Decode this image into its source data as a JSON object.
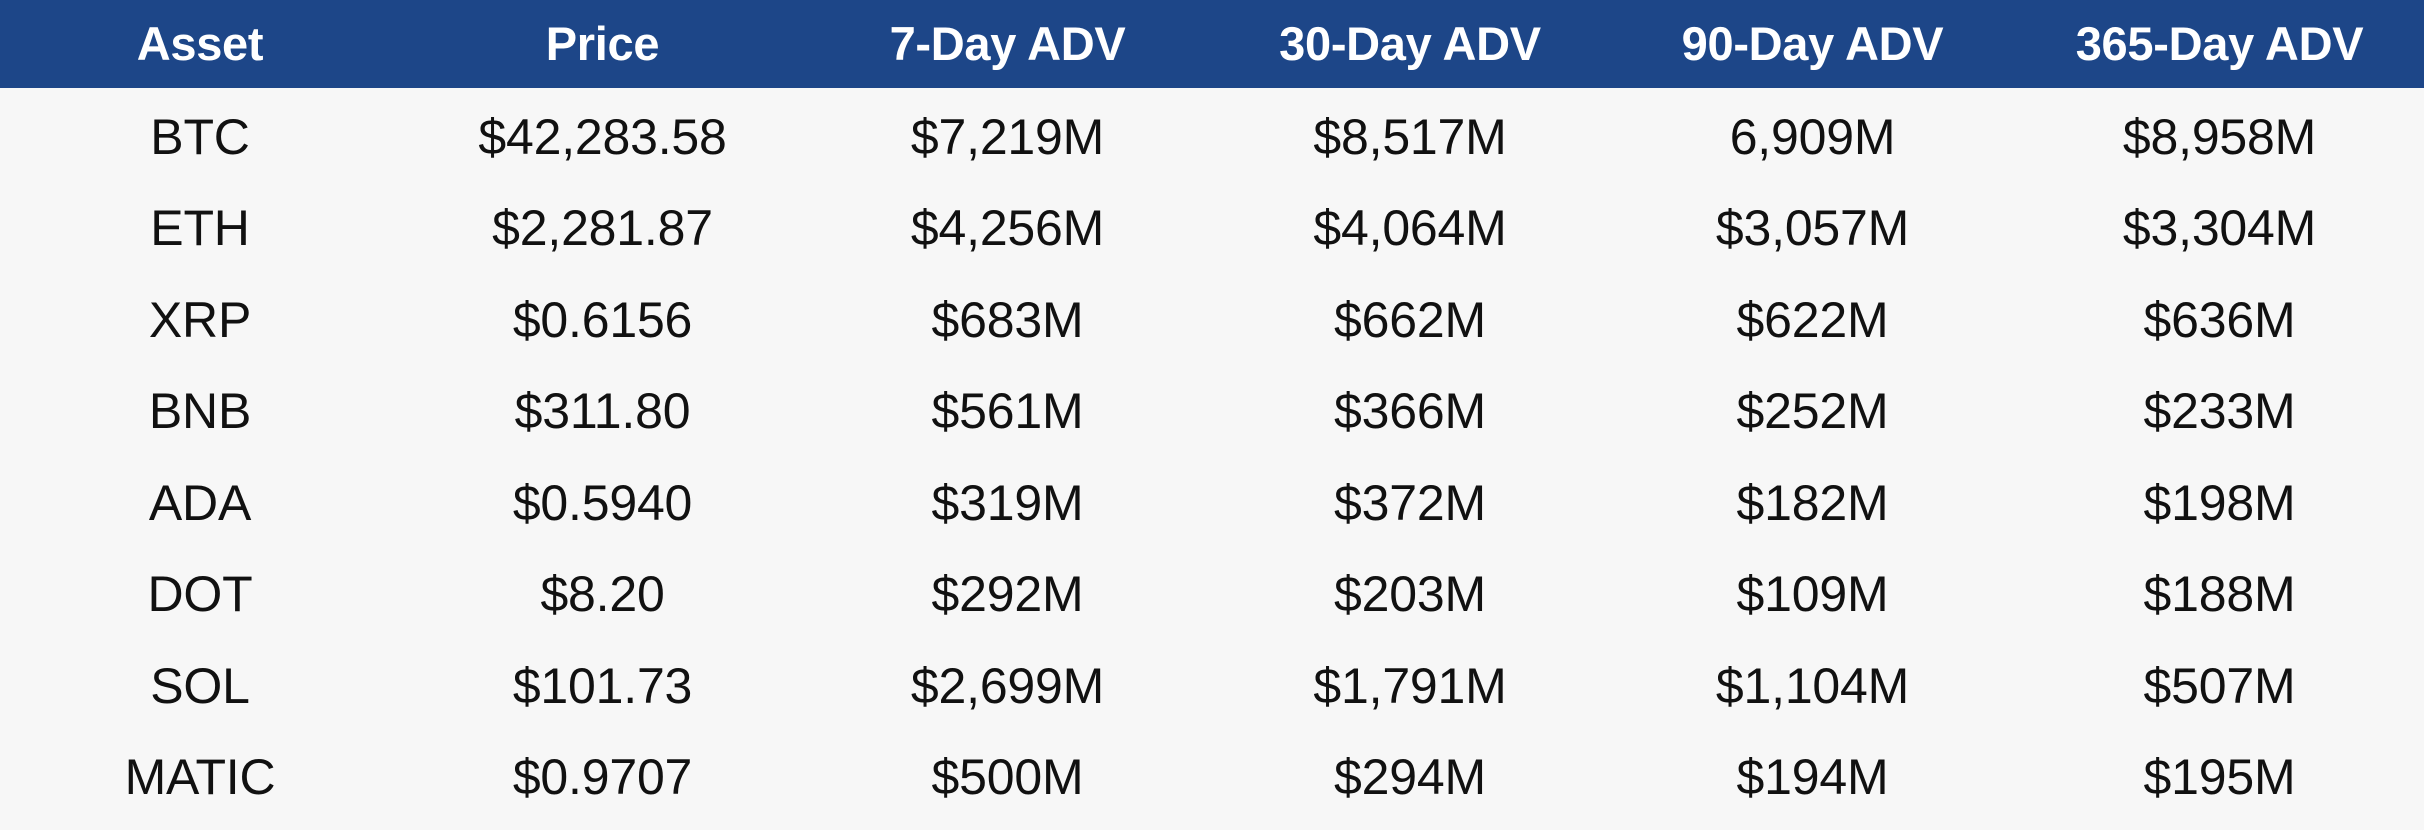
{
  "table": {
    "headers": [
      "Asset",
      "Price",
      "7-Day ADV",
      "30-Day ADV",
      "90-Day ADV",
      "365-Day ADV"
    ],
    "rows": [
      [
        "BTC",
        "$42,283.58",
        "$7,219M",
        "$8,517M",
        "6,909M",
        "$8,958M"
      ],
      [
        "ETH",
        "$2,281.87",
        "$4,256M",
        "$4,064M",
        "$3,057M",
        "$3,304M"
      ],
      [
        "XRP",
        "$0.6156",
        "$683M",
        "$662M",
        "$622M",
        "$636M"
      ],
      [
        "BNB",
        "$311.80",
        "$561M",
        "$366M",
        "$252M",
        "$233M"
      ],
      [
        "ADA",
        "$0.5940",
        "$319M",
        "$372M",
        "$182M",
        "$198M"
      ],
      [
        "DOT",
        "$8.20",
        "$292M",
        "$203M",
        "$109M",
        "$188M"
      ],
      [
        "SOL",
        "$101.73",
        "$2,699M",
        "$1,791M",
        "$1,104M",
        "$507M"
      ],
      [
        "MATIC",
        "$0.9707",
        "$500M",
        "$294M",
        "$194M",
        "$195M"
      ]
    ]
  },
  "colors": {
    "header_background": "#1d4688",
    "header_text": "#ffffff",
    "body_background": "#f7f7f7",
    "body_text": "#111111"
  }
}
